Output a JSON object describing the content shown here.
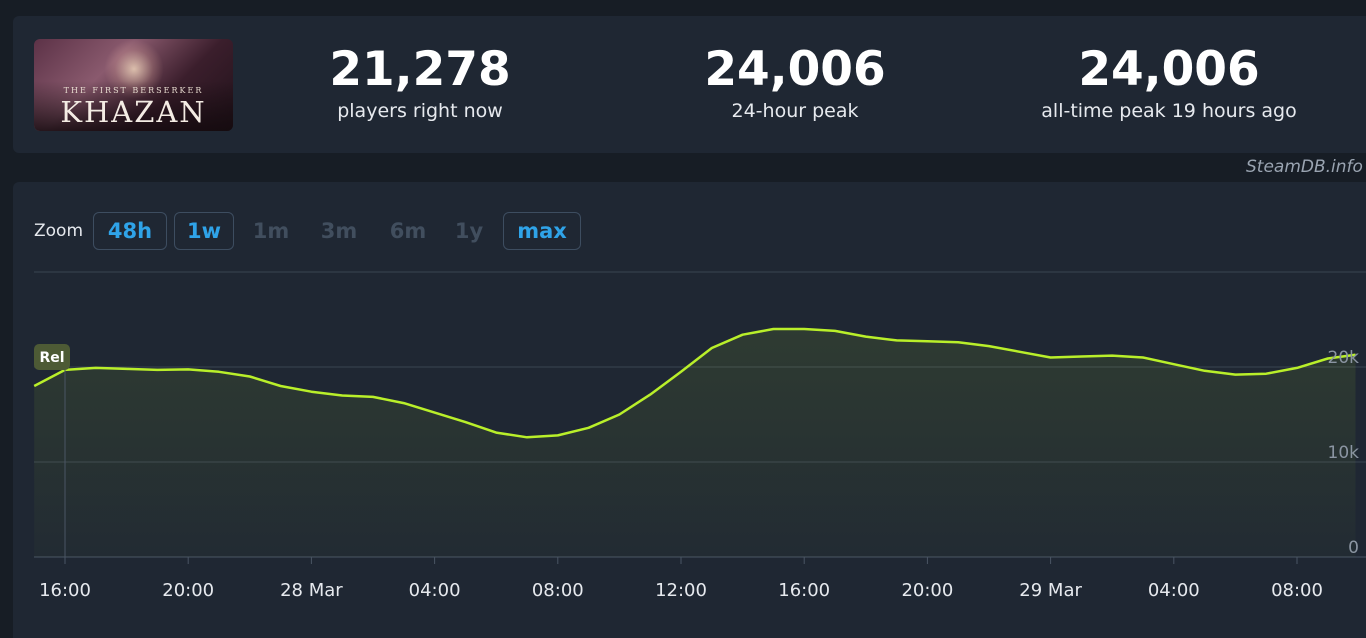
{
  "game": {
    "logo_subtitle": "THE FIRST BERSERKER",
    "logo_title": "KHAZAN"
  },
  "stats": [
    {
      "value": "21,278",
      "label": "players right now"
    },
    {
      "value": "24,006",
      "label": "24-hour peak"
    },
    {
      "value": "24,006",
      "label": "all-time peak 19 hours ago"
    }
  ],
  "credit": "SteamDB.info",
  "zoom": {
    "label": "Zoom",
    "options": [
      {
        "label": "48h",
        "active": true
      },
      {
        "label": "1w",
        "active": true
      },
      {
        "label": "1m",
        "active": false
      },
      {
        "label": "3m",
        "active": false
      },
      {
        "label": "6m",
        "active": false
      },
      {
        "label": "1y",
        "active": false
      },
      {
        "label": "max",
        "active": true
      }
    ]
  },
  "colors": {
    "line": "#b9ef2a",
    "grid": "#3a4452",
    "axis_text": "#e6e9ee",
    "y_text": "#8b95a2",
    "release_badge": "#4d5a35"
  },
  "chart_data": {
    "type": "area",
    "title": "",
    "xlabel": "",
    "ylabel": "",
    "ylim": [
      0,
      30000
    ],
    "y_ticks": [
      {
        "value": 0,
        "label": "0"
      },
      {
        "value": 10000,
        "label": "10k"
      },
      {
        "value": 20000,
        "label": "20k"
      }
    ],
    "x_ticks": [
      {
        "hour": 0,
        "label": "16:00"
      },
      {
        "hour": 4,
        "label": "20:00"
      },
      {
        "hour": 8,
        "label": "28 Mar"
      },
      {
        "hour": 12,
        "label": "04:00"
      },
      {
        "hour": 16,
        "label": "08:00"
      },
      {
        "hour": 20,
        "label": "12:00"
      },
      {
        "hour": 24,
        "label": "16:00"
      },
      {
        "hour": 28,
        "label": "20:00"
      },
      {
        "hour": 32,
        "label": "29 Mar"
      },
      {
        "hour": 36,
        "label": "04:00"
      },
      {
        "hour": 40,
        "label": "08:00"
      }
    ],
    "x_range": [
      -1,
      41.9
    ],
    "annotations": [
      {
        "hour": 0,
        "label": "Rel"
      }
    ],
    "series": [
      {
        "name": "Players",
        "x": [
          -1,
          0,
          1,
          2,
          3,
          4,
          5,
          6,
          7,
          8,
          9,
          10,
          11,
          12,
          13,
          14,
          15,
          16,
          17,
          18,
          19,
          20,
          21,
          22,
          23,
          24,
          25,
          26,
          27,
          28,
          29,
          30,
          31,
          32,
          33,
          34,
          35,
          36,
          37,
          38,
          39,
          40,
          41,
          41.9
        ],
        "y": [
          18000,
          19700,
          19900,
          19800,
          19700,
          19750,
          19500,
          19000,
          18000,
          17400,
          17000,
          16850,
          16200,
          15200,
          14200,
          13100,
          12600,
          12800,
          13600,
          15000,
          17100,
          19500,
          22000,
          23400,
          24000,
          24000,
          23800,
          23200,
          22800,
          22700,
          22600,
          22200,
          21600,
          21000,
          21100,
          21200,
          21000,
          20300,
          19600,
          19200,
          19300,
          19900,
          20900,
          21300
        ]
      }
    ]
  }
}
